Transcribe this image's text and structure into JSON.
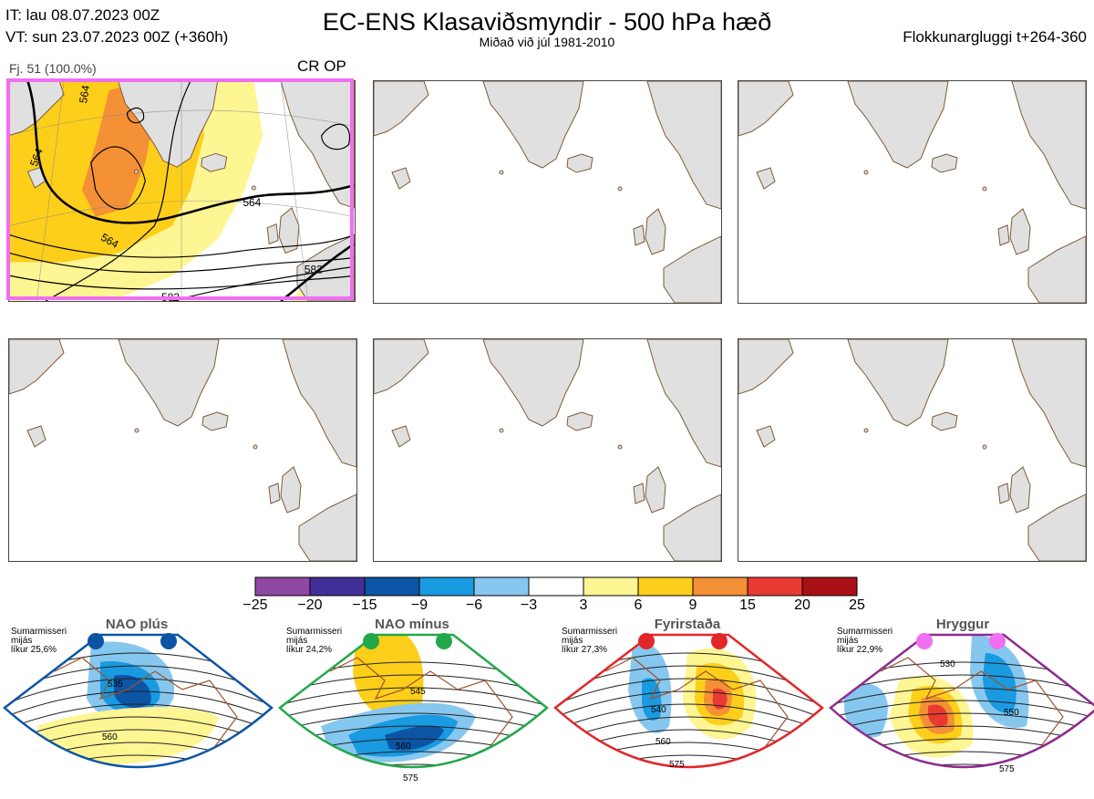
{
  "header": {
    "it_line": "IT: lau 08.07.2023 00Z",
    "vt_line": "VT: sun 23.07.2023 00Z  (+360h)",
    "title": "EC-ENS Klasaviðsmyndir - 500 hPa hæð",
    "subtitle": "Miðað við júl 1981-2010",
    "window": "Flokkunargluggi t+264-360"
  },
  "panel1": {
    "label": "Fj. 51 (100.0%)",
    "tag": "CR OP",
    "frame_color": "#f06ef0",
    "contour_labels": [
      "564",
      "564",
      "564",
      "564",
      "582",
      "582"
    ]
  },
  "colorbar": {
    "ticks": [
      "-25",
      "-20",
      "-15",
      "-9",
      "-6",
      "-3",
      "3",
      "6",
      "9",
      "15",
      "20",
      "25"
    ],
    "colors": [
      "#8e48a4",
      "#432f9a",
      "#0c55a5",
      "#1a9ae0",
      "#86c7ef",
      "#ffffff",
      "#fef593",
      "#fdcf1a",
      "#f49036",
      "#e93a32",
      "#a81016"
    ]
  },
  "chart_data": {
    "type": "heatmap",
    "title": "EC-ENS Klasaviðsmyndir - 500 hPa hæð",
    "variable": "500 hPa geopotential height anomaly",
    "colorbar_range": [
      -25,
      25
    ],
    "colorbar_boundaries": [
      -25,
      -20,
      -15,
      -9,
      -6,
      -3,
      3,
      6,
      9,
      15,
      20,
      25
    ],
    "panels": [
      {
        "name": "Fj. 51 (100.0%)",
        "tag": "CR OP",
        "members": 51,
        "percent": 100.0,
        "contours": [
          564,
          582
        ]
      },
      {
        "name": "",
        "empty": true
      },
      {
        "name": "",
        "empty": true
      },
      {
        "name": "",
        "empty": true
      },
      {
        "name": "",
        "empty": true
      },
      {
        "name": "",
        "empty": true
      }
    ],
    "regimes": [
      {
        "name": "NAO plús",
        "probability": 25.6,
        "contours": [
          535,
          560
        ]
      },
      {
        "name": "NAO mínus",
        "probability": 24.2,
        "contours": [
          545,
          560,
          575
        ]
      },
      {
        "name": "Fyrirstaða",
        "probability": 27.3,
        "contours": [
          540,
          560,
          575
        ]
      },
      {
        "name": "Hryggur",
        "probability": 22.9,
        "contours": [
          530,
          550,
          575
        ]
      }
    ]
  },
  "regimes": [
    {
      "name": "NAO plús",
      "line1": "Sumarmisseri",
      "line2": "mijás",
      "line3": "líkur 25,6%",
      "color": "#0c55a5",
      "c1": "535",
      "c2": "560",
      "c3": ""
    },
    {
      "name": "NAO mínus",
      "line1": "Sumarmisseri",
      "line2": "mijás",
      "line3": "líkur 24,2%",
      "color": "#22a84a",
      "c1": "545",
      "c2": "560",
      "c3": "575"
    },
    {
      "name": "Fyrirstaða",
      "line1": "Sumarmisseri",
      "line2": "mijás",
      "line3": "líkur 27,3%",
      "color": "#e3262a",
      "c1": "540",
      "c2": "560",
      "c3": "575"
    },
    {
      "name": "Hryggur",
      "line1": "Sumarmisseri",
      "line2": "mijás",
      "line3": "líkur 22,9%",
      "color": "#8d2c8d",
      "c1": "530",
      "c2": "550",
      "c3": "575"
    }
  ]
}
